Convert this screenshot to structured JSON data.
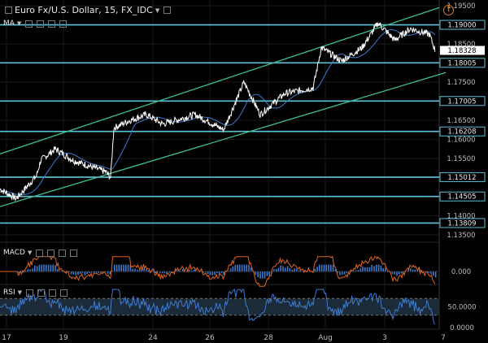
{
  "header": {
    "title": "Euro Fx/U.S. Dollar, 15, FX_IDC",
    "ma_label": "MA",
    "macd_label": "MACD",
    "rsi_label": "RSI"
  },
  "chart_data": [
    {
      "type": "line",
      "series": [
        {
          "values_start": 1.144,
          "values_end": 1.1833,
          "color": "#ffffff"
        },
        {
          "color": "#3d7bd0"
        }
      ],
      "ylim": [
        1.1335,
        1.1965
      ],
      "y_ticks": [
        "1.19500",
        "1.19000",
        "1.18500",
        "1.18000",
        "1.17500",
        "1.17000",
        "1.16500",
        "1.16000",
        "1.15500",
        "1.15000",
        "1.14500",
        "1.14000",
        "1.13500"
      ],
      "x_ticks": [
        "17",
        "19",
        "24",
        "26",
        "28",
        "Aug",
        "3",
        "7"
      ],
      "last_price_label": "1.18328",
      "horizontal_levels": [
        {
          "value": 1.19,
          "label": "1.19000"
        },
        {
          "value": 1.18005,
          "label": "1.18005"
        },
        {
          "value": 1.17005,
          "label": "1.17005"
        },
        {
          "value": 1.16208,
          "label": "1.16208"
        },
        {
          "value": 1.15012,
          "label": "1.15012"
        },
        {
          "value": 1.14505,
          "label": "1.14505"
        },
        {
          "value": 1.13809,
          "label": "1.13809"
        }
      ],
      "level_color": "#5fc0d8",
      "channel_color": "#3fbf8f"
    },
    {
      "type": "bar",
      "zero_label": "0.000",
      "macd_color": "#e0641e",
      "hist_color": "#3d7bd0"
    },
    {
      "type": "line",
      "y_ticks": [
        "50.0000",
        "0.0000"
      ],
      "band_upper": 70,
      "band_lower": 30,
      "line_color": "#3d7bd0",
      "band_color": "#1b2b3a"
    }
  ],
  "icons": {
    "warning": "!"
  }
}
